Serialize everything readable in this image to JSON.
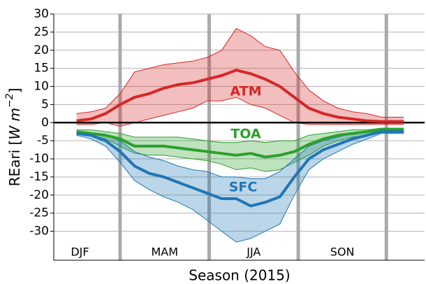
{
  "chart_data": {
    "type": "band-line",
    "xlabel": "Season (2015)",
    "ylabel": {
      "prefix": "REari [",
      "unit": "W m",
      "exponent": "−2",
      "suffix": "]"
    },
    "x": [
      15,
      30,
      45,
      60,
      75,
      90,
      105,
      120,
      135,
      150,
      165,
      180,
      195,
      210,
      225,
      240,
      255,
      270,
      285,
      300,
      315,
      330,
      345,
      353
    ],
    "xlim": [
      -8.5,
      374.5
    ],
    "ylim": [
      -38,
      30
    ],
    "yticks": [
      -30,
      -25,
      -20,
      -15,
      -10,
      -5,
      0,
      5,
      10,
      15,
      20,
      25,
      30
    ],
    "grid": true,
    "zero_line": 0,
    "season_boundaries": [
      60,
      152,
      244,
      335
    ],
    "seasons": [
      "DJF",
      "MAM",
      "JJA",
      "SON"
    ],
    "series": [
      {
        "name": "ATM",
        "color": "#d62728",
        "values": [
          0.5,
          1,
          2.5,
          5,
          7,
          8,
          9.5,
          10.5,
          11,
          12,
          13,
          14.5,
          13.5,
          12,
          10,
          7,
          4,
          2.5,
          1.5,
          1,
          0.5,
          0.3,
          0.3,
          0.3
        ],
        "upper": [
          2.5,
          3,
          4,
          8,
          14,
          15,
          16,
          16.5,
          17,
          18,
          20,
          26,
          24,
          21,
          20,
          14,
          9,
          6,
          4,
          3,
          2.5,
          1.5,
          1.5,
          1.5
        ],
        "lower": [
          -0.5,
          -0.5,
          0,
          -1,
          0,
          1,
          2,
          3,
          4,
          6,
          6,
          7,
          5,
          4,
          2,
          0,
          -0.5,
          -0.5,
          -0.5,
          -0.5,
          -0.5,
          -0.5,
          -0.5,
          -0.5
        ]
      },
      {
        "name": "TOA",
        "color": "#2ca02c",
        "values": [
          -2.5,
          -3,
          -3.5,
          -4.5,
          -6.5,
          -6.5,
          -6.5,
          -7,
          -7.5,
          -8,
          -8.5,
          -9,
          -8.5,
          -9.5,
          -9,
          -8,
          -6,
          -4.5,
          -3.5,
          -3,
          -2.5,
          -2,
          -2,
          -2
        ],
        "upper": [
          -2,
          -2,
          -2.5,
          -3,
          -4,
          -4,
          -4,
          -4,
          -4.5,
          -5,
          -5.5,
          -5.5,
          -5,
          -5.5,
          -5,
          -5,
          -3.5,
          -3,
          -2.5,
          -2,
          -2,
          -1.5,
          -1.5,
          -1.5
        ],
        "lower": [
          -3,
          -3.5,
          -4.5,
          -6.5,
          -8.5,
          -9,
          -9,
          -9.5,
          -10,
          -10.5,
          -11.5,
          -13,
          -12.5,
          -13.5,
          -13,
          -11,
          -9,
          -6.5,
          -5,
          -4,
          -3.5,
          -2.5,
          -2.5,
          -2.5
        ]
      },
      {
        "name": "SFC",
        "color": "#1f77b4",
        "values": [
          -3,
          -3.5,
          -5,
          -8,
          -12,
          -14,
          -15,
          -16.5,
          -18,
          -19.5,
          -21,
          -21,
          -23,
          -22,
          -20.5,
          -15,
          -10,
          -7.5,
          -6,
          -4.5,
          -3.5,
          -2.5,
          -2.5,
          -2.5
        ],
        "upper": [
          -2.5,
          -3,
          -3.5,
          -5,
          -8,
          -9.5,
          -10.5,
          -12,
          -13,
          -13.5,
          -15,
          -15,
          -15.5,
          -15.5,
          -13.5,
          -10,
          -6.5,
          -5,
          -4,
          -3,
          -2.5,
          -2,
          -2,
          -2
        ],
        "lower": [
          -3.5,
          -4.5,
          -6.5,
          -11,
          -16,
          -18.5,
          -20.5,
          -22,
          -24,
          -27,
          -30,
          -33,
          -32,
          -30,
          -28,
          -20,
          -13,
          -10,
          -8,
          -6,
          -4.5,
          -3,
          -3,
          -3
        ]
      }
    ]
  }
}
